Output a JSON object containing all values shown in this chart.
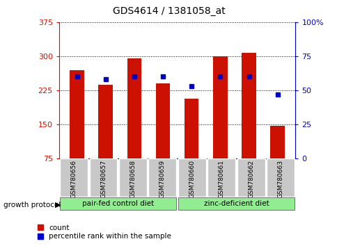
{
  "title": "GDS4614 / 1381058_at",
  "samples": [
    "GSM780656",
    "GSM780657",
    "GSM780658",
    "GSM780659",
    "GSM780660",
    "GSM780661",
    "GSM780662",
    "GSM780663"
  ],
  "counts": [
    270,
    238,
    295,
    240,
    207,
    300,
    308,
    148
  ],
  "percentiles": [
    60,
    58,
    60,
    60,
    53,
    60,
    60,
    47
  ],
  "ylim_left": [
    75,
    375
  ],
  "ylim_right": [
    0,
    100
  ],
  "yticks_left": [
    75,
    150,
    225,
    300,
    375
  ],
  "yticks_right": [
    0,
    25,
    50,
    75,
    100
  ],
  "bar_color": "#CC1100",
  "dot_color": "#0000CC",
  "bg_color": "#ffffff",
  "plot_bg": "#ffffff",
  "title_color": "#000000",
  "left_axis_color": "#CC1100",
  "right_axis_color": "#0000CC",
  "group1_label": "pair-fed control diet",
  "group2_label": "zinc-deficient diet",
  "group_bg_color": "#90EE90",
  "tick_label_bg": "#C8C8C8",
  "growth_protocol_label": "growth protocol",
  "legend_count_label": "count",
  "legend_pct_label": "percentile rank within the sample"
}
